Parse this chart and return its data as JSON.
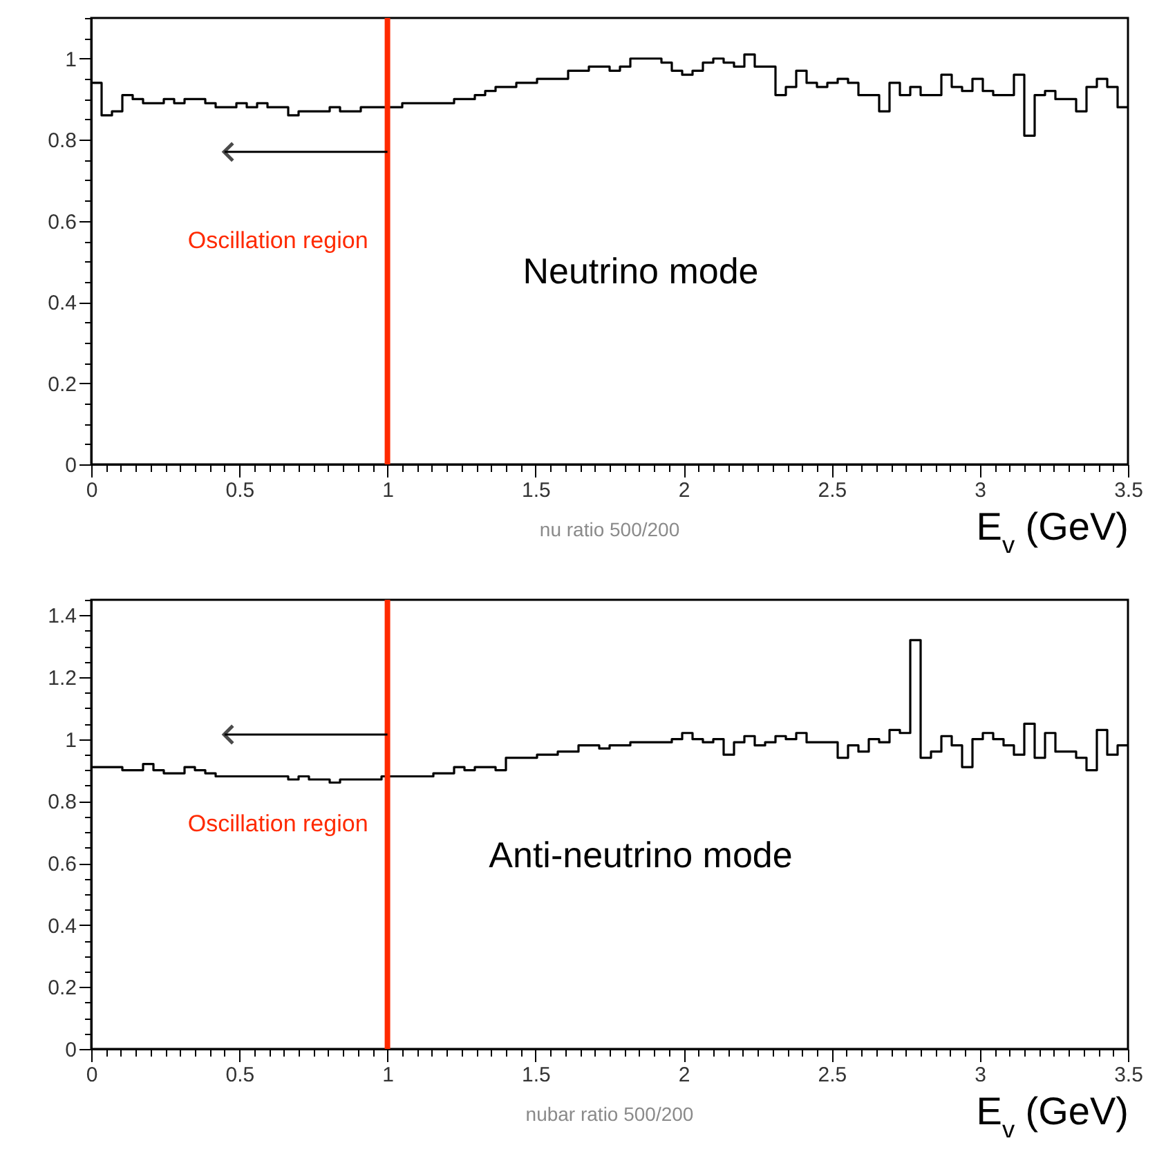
{
  "chart_data": [
    {
      "type": "histogram",
      "xlabel": "E$_{v}$ (GeV)",
      "color": "#000000",
      "line_style": "solid",
      "marker": "none",
      "grid": false,
      "annotations": [
        "Neutrino mode",
        "nu ratio 500/200"
      ],
      "ref_lines": [
        {
          "axis": "x",
          "value": 1,
          "label": "Oscillation region",
          "color": "#ff2a00"
        }
      ],
      "bins": [
        0,
        0.035,
        0.07,
        0.105,
        0.14,
        0.175,
        0.21,
        0.245,
        0.28,
        0.315,
        0.35,
        0.385,
        0.42,
        0.455,
        0.49,
        0.525,
        0.56,
        0.595,
        0.63,
        0.665,
        0.7,
        0.735,
        0.77,
        0.805,
        0.84,
        0.875,
        0.91,
        0.945,
        0.98,
        1.015,
        1.05,
        1.085,
        1.12,
        1.155,
        1.19,
        1.225,
        1.26,
        1.295,
        1.33,
        1.365,
        1.4,
        1.435,
        1.47,
        1.505,
        1.54,
        1.575,
        1.61,
        1.645,
        1.68,
        1.715,
        1.75,
        1.785,
        1.82,
        1.855,
        1.89,
        1.925,
        1.96,
        1.995,
        2.03,
        2.065,
        2.1,
        2.135,
        2.17,
        2.205,
        2.24,
        2.275,
        2.31,
        2.345,
        2.38,
        2.415,
        2.45,
        2.485,
        2.52,
        2.555,
        2.59,
        2.625,
        2.66,
        2.695,
        2.73,
        2.765,
        2.8,
        2.835,
        2.87,
        2.905,
        2.94,
        2.975,
        3.01,
        3.045,
        3.08,
        3.115,
        3.15,
        3.185,
        3.22,
        3.255,
        3.29,
        3.325,
        3.36,
        3.395,
        3.43,
        3.465,
        3.5
      ],
      "values": [
        0.94,
        0.86,
        0.87,
        0.91,
        0.9,
        0.89,
        0.89,
        0.9,
        0.89,
        0.9,
        0.9,
        0.89,
        0.88,
        0.88,
        0.89,
        0.88,
        0.89,
        0.88,
        0.88,
        0.86,
        0.87,
        0.87,
        0.87,
        0.88,
        0.87,
        0.87,
        0.88,
        0.88,
        0.88,
        0.88,
        0.89,
        0.89,
        0.89,
        0.89,
        0.89,
        0.9,
        0.9,
        0.91,
        0.92,
        0.93,
        0.93,
        0.94,
        0.94,
        0.95,
        0.95,
        0.95,
        0.97,
        0.97,
        0.98,
        0.98,
        0.97,
        0.98,
        1.0,
        1.0,
        1.0,
        0.99,
        0.97,
        0.96,
        0.97,
        0.99,
        1.0,
        0.99,
        0.98,
        1.01,
        0.98,
        0.98,
        0.91,
        0.93,
        0.97,
        0.94,
        0.93,
        0.94,
        0.95,
        0.94,
        0.91,
        0.91,
        0.87,
        0.94,
        0.91,
        0.93,
        0.91,
        0.91,
        0.96,
        0.93,
        0.92,
        0.95,
        0.92,
        0.91,
        0.91,
        0.96,
        0.81,
        0.91,
        0.92,
        0.9,
        0.9,
        0.87,
        0.93,
        0.95,
        0.93,
        0.88
      ],
      "xlim": [
        0,
        3.5
      ],
      "ylim": [
        0,
        1.1
      ],
      "xticks": [
        0,
        {
          "value": 0.05,
          "label": null
        },
        {
          "value": 0.1,
          "label": null
        },
        {
          "value": 0.15,
          "label": null
        },
        {
          "value": 0.2,
          "label": null
        },
        {
          "value": 0.25,
          "label": null
        },
        {
          "value": 0.3,
          "label": null
        },
        {
          "value": 0.35,
          "label": null
        },
        {
          "value": 0.4,
          "label": null
        },
        {
          "value": 0.45,
          "label": null
        },
        0.5,
        {
          "value": 0.55,
          "label": null
        },
        {
          "value": 0.6,
          "label": null
        },
        {
          "value": 0.65,
          "label": null
        },
        {
          "value": 0.7,
          "label": null
        },
        {
          "value": 0.75,
          "label": null
        },
        {
          "value": 0.8,
          "label": null
        },
        {
          "value": 0.85,
          "label": null
        },
        {
          "value": 0.9,
          "label": null
        },
        {
          "value": 0.95,
          "label": null
        },
        1,
        {
          "value": 1.05,
          "label": null
        },
        {
          "value": 1.1,
          "label": null
        },
        {
          "value": 1.15,
          "label": null
        },
        {
          "value": 1.2,
          "label": null
        },
        {
          "value": 1.25,
          "label": null
        },
        {
          "value": 1.3,
          "label": null
        },
        {
          "value": 1.35,
          "label": null
        },
        {
          "value": 1.4,
          "label": null
        },
        {
          "value": 1.45,
          "label": null
        },
        1.5,
        {
          "value": 1.55,
          "label": null
        },
        {
          "value": 1.6,
          "label": null
        },
        {
          "value": 1.65,
          "label": null
        },
        {
          "value": 1.7,
          "label": null
        },
        {
          "value": 1.75,
          "label": null
        },
        {
          "value": 1.8,
          "label": null
        },
        {
          "value": 1.85,
          "label": null
        },
        {
          "value": 1.9,
          "label": null
        },
        {
          "value": 1.95,
          "label": null
        },
        2,
        {
          "value": 2.05,
          "label": null
        },
        {
          "value": 2.1,
          "label": null
        },
        {
          "value": 2.15,
          "label": null
        },
        {
          "value": 2.2,
          "label": null
        },
        {
          "value": 2.25,
          "label": null
        },
        {
          "value": 2.3,
          "label": null
        },
        {
          "value": 2.35,
          "label": null
        },
        {
          "value": 2.4,
          "label": null
        },
        {
          "value": 2.45,
          "label": null
        },
        2.5,
        {
          "value": 2.55,
          "label": null
        },
        {
          "value": 2.6,
          "label": null
        },
        {
          "value": 2.65,
          "label": null
        },
        {
          "value": 2.7,
          "label": null
        },
        {
          "value": 2.75,
          "label": null
        },
        {
          "value": 2.8,
          "label": null
        },
        {
          "value": 2.85,
          "label": null
        },
        {
          "value": 2.9,
          "label": null
        },
        {
          "value": 2.95,
          "label": null
        },
        3,
        {
          "value": 3.05,
          "label": null
        },
        {
          "value": 3.1,
          "label": null
        },
        {
          "value": 3.15,
          "label": null
        },
        {
          "value": 3.2,
          "label": null
        },
        {
          "value": 3.25,
          "label": null
        },
        {
          "value": 3.3,
          "label": null
        },
        {
          "value": 3.35,
          "label": null
        },
        {
          "value": 3.4,
          "label": null
        },
        {
          "value": 3.45,
          "label": null
        },
        3.5
      ],
      "yticks": [
        0,
        {
          "value": 0.05,
          "label": null
        },
        {
          "value": 0.1,
          "label": null
        },
        {
          "value": 0.15,
          "label": null
        },
        0.2,
        {
          "value": 0.25,
          "label": null
        },
        {
          "value": 0.3,
          "label": null
        },
        {
          "value": 0.35,
          "label": null
        },
        0.4,
        {
          "value": 0.45,
          "label": null
        },
        {
          "value": 0.5,
          "label": null
        },
        {
          "value": 0.55,
          "label": null
        },
        0.6,
        {
          "value": 0.65,
          "label": null
        },
        {
          "value": 0.7,
          "label": null
        },
        {
          "value": 0.75,
          "label": null
        },
        0.8,
        {
          "value": 0.85,
          "label": null
        },
        {
          "value": 0.9,
          "label": null
        },
        {
          "value": 0.95,
          "label": null
        },
        1,
        {
          "value": 1.05,
          "label": null
        },
        {
          "value": 1.1,
          "label": null
        }
      ]
    },
    {
      "type": "histogram",
      "xlabel": "E$_{v}$ (GeV)",
      "color": "#000000",
      "line_style": "solid",
      "marker": "none",
      "grid": false,
      "annotations": [
        "Anti-neutrino mode",
        "nubar ratio 500/200"
      ],
      "ref_lines": [
        {
          "axis": "x",
          "value": 1,
          "label": "Oscillation region",
          "color": "#ff2a00"
        }
      ],
      "bins": [
        0,
        0.035,
        0.07,
        0.105,
        0.14,
        0.175,
        0.21,
        0.245,
        0.28,
        0.315,
        0.35,
        0.385,
        0.42,
        0.455,
        0.49,
        0.525,
        0.56,
        0.595,
        0.63,
        0.665,
        0.7,
        0.735,
        0.77,
        0.805,
        0.84,
        0.875,
        0.91,
        0.945,
        0.98,
        1.015,
        1.05,
        1.085,
        1.12,
        1.155,
        1.19,
        1.225,
        1.26,
        1.295,
        1.33,
        1.365,
        1.4,
        1.435,
        1.47,
        1.505,
        1.54,
        1.575,
        1.61,
        1.645,
        1.68,
        1.715,
        1.75,
        1.785,
        1.82,
        1.855,
        1.89,
        1.925,
        1.96,
        1.995,
        2.03,
        2.065,
        2.1,
        2.135,
        2.17,
        2.205,
        2.24,
        2.275,
        2.31,
        2.345,
        2.38,
        2.415,
        2.45,
        2.485,
        2.52,
        2.555,
        2.59,
        2.625,
        2.66,
        2.695,
        2.73,
        2.765,
        2.8,
        2.835,
        2.87,
        2.905,
        2.94,
        2.975,
        3.01,
        3.045,
        3.08,
        3.115,
        3.15,
        3.185,
        3.22,
        3.255,
        3.29,
        3.325,
        3.36,
        3.395,
        3.43,
        3.465,
        3.5
      ],
      "values": [
        0.91,
        0.91,
        0.91,
        0.9,
        0.9,
        0.92,
        0.9,
        0.89,
        0.89,
        0.91,
        0.9,
        0.89,
        0.88,
        0.88,
        0.88,
        0.88,
        0.88,
        0.88,
        0.88,
        0.87,
        0.88,
        0.87,
        0.87,
        0.86,
        0.87,
        0.87,
        0.87,
        0.87,
        0.88,
        0.88,
        0.88,
        0.88,
        0.88,
        0.89,
        0.89,
        0.91,
        0.9,
        0.91,
        0.91,
        0.9,
        0.94,
        0.94,
        0.94,
        0.95,
        0.95,
        0.96,
        0.96,
        0.98,
        0.98,
        0.97,
        0.98,
        0.98,
        0.99,
        0.99,
        0.99,
        0.99,
        1.0,
        1.02,
        1.0,
        0.99,
        1.0,
        0.95,
        0.99,
        1.01,
        0.98,
        0.99,
        1.01,
        1.0,
        1.02,
        0.99,
        0.99,
        0.99,
        0.94,
        0.98,
        0.96,
        1.0,
        0.99,
        1.03,
        1.02,
        1.32,
        0.94,
        0.96,
        1.01,
        0.98,
        0.91,
        1.0,
        1.02,
        1.0,
        0.98,
        0.95,
        1.05,
        0.94,
        1.02,
        0.96,
        0.96,
        0.94,
        0.9,
        1.03,
        0.95,
        0.98
      ],
      "xlim": [
        0,
        3.5
      ],
      "ylim": [
        0,
        1.45
      ],
      "xticks": [
        0,
        {
          "value": 0.05,
          "label": null
        },
        {
          "value": 0.1,
          "label": null
        },
        {
          "value": 0.15,
          "label": null
        },
        {
          "value": 0.2,
          "label": null
        },
        {
          "value": 0.25,
          "label": null
        },
        {
          "value": 0.3,
          "label": null
        },
        {
          "value": 0.35,
          "label": null
        },
        {
          "value": 0.4,
          "label": null
        },
        {
          "value": 0.45,
          "label": null
        },
        0.5,
        {
          "value": 0.55,
          "label": null
        },
        {
          "value": 0.6,
          "label": null
        },
        {
          "value": 0.65,
          "label": null
        },
        {
          "value": 0.7,
          "label": null
        },
        {
          "value": 0.75,
          "label": null
        },
        {
          "value": 0.8,
          "label": null
        },
        {
          "value": 0.85,
          "label": null
        },
        {
          "value": 0.9,
          "label": null
        },
        {
          "value": 0.95,
          "label": null
        },
        1,
        {
          "value": 1.05,
          "label": null
        },
        {
          "value": 1.1,
          "label": null
        },
        {
          "value": 1.15,
          "label": null
        },
        {
          "value": 1.2,
          "label": null
        },
        {
          "value": 1.25,
          "label": null
        },
        {
          "value": 1.3,
          "label": null
        },
        {
          "value": 1.35,
          "label": null
        },
        {
          "value": 1.4,
          "label": null
        },
        {
          "value": 1.45,
          "label": null
        },
        1.5,
        {
          "value": 1.55,
          "label": null
        },
        {
          "value": 1.6,
          "label": null
        },
        {
          "value": 1.65,
          "label": null
        },
        {
          "value": 1.7,
          "label": null
        },
        {
          "value": 1.75,
          "label": null
        },
        {
          "value": 1.8,
          "label": null
        },
        {
          "value": 1.85,
          "label": null
        },
        {
          "value": 1.9,
          "label": null
        },
        {
          "value": 1.95,
          "label": null
        },
        2,
        {
          "value": 2.05,
          "label": null
        },
        {
          "value": 2.1,
          "label": null
        },
        {
          "value": 2.15,
          "label": null
        },
        {
          "value": 2.2,
          "label": null
        },
        {
          "value": 2.25,
          "label": null
        },
        {
          "value": 2.3,
          "label": null
        },
        {
          "value": 2.35,
          "label": null
        },
        {
          "value": 2.4,
          "label": null
        },
        {
          "value": 2.45,
          "label": null
        },
        2.5,
        {
          "value": 2.55,
          "label": null
        },
        {
          "value": 2.6,
          "label": null
        },
        {
          "value": 2.65,
          "label": null
        },
        {
          "value": 2.7,
          "label": null
        },
        {
          "value": 2.75,
          "label": null
        },
        {
          "value": 2.8,
          "label": null
        },
        {
          "value": 2.85,
          "label": null
        },
        {
          "value": 2.9,
          "label": null
        },
        {
          "value": 2.95,
          "label": null
        },
        3,
        {
          "value": 3.05,
          "label": null
        },
        {
          "value": 3.1,
          "label": null
        },
        {
          "value": 3.15,
          "label": null
        },
        {
          "value": 3.2,
          "label": null
        },
        {
          "value": 3.25,
          "label": null
        },
        {
          "value": 3.3,
          "label": null
        },
        {
          "value": 3.35,
          "label": null
        },
        {
          "value": 3.4,
          "label": null
        },
        {
          "value": 3.45,
          "label": null
        },
        3.5
      ],
      "yticks": [
        0,
        {
          "value": 0.05,
          "label": null
        },
        {
          "value": 0.1,
          "label": null
        },
        {
          "value": 0.15,
          "label": null
        },
        0.2,
        {
          "value": 0.25,
          "label": null
        },
        {
          "value": 0.3,
          "label": null
        },
        {
          "value": 0.35,
          "label": null
        },
        0.4,
        {
          "value": 0.45,
          "label": null
        },
        {
          "value": 0.5,
          "label": null
        },
        {
          "value": 0.55,
          "label": null
        },
        0.6,
        {
          "value": 0.65,
          "label": null
        },
        {
          "value": 0.7,
          "label": null
        },
        {
          "value": 0.75,
          "label": null
        },
        0.8,
        {
          "value": 0.85,
          "label": null
        },
        {
          "value": 0.9,
          "label": null
        },
        {
          "value": 0.95,
          "label": null
        },
        1,
        {
          "value": 1.05,
          "label": null
        },
        {
          "value": 1.1,
          "label": null
        },
        {
          "value": 1.15,
          "label": null
        },
        1.2,
        {
          "value": 1.25,
          "label": null
        },
        {
          "value": 1.3,
          "label": null
        },
        {
          "value": 1.35,
          "label": null
        },
        1.4,
        {
          "value": 1.45,
          "label": null
        }
      ]
    }
  ]
}
